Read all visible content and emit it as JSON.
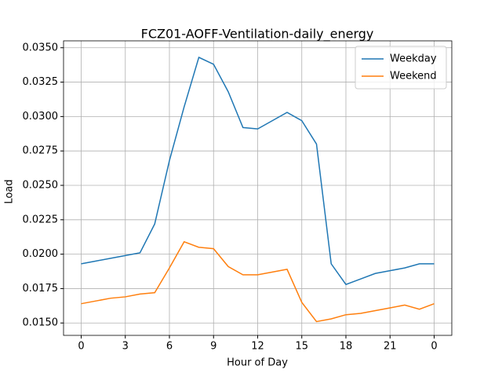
{
  "chart_data": {
    "type": "line",
    "title": "FCZ01-AOFF-Ventilation-daily_energy",
    "x_label": "Hour of Day",
    "y_label": "Load",
    "x": [
      0,
      1,
      2,
      3,
      4,
      5,
      6,
      7,
      8,
      9,
      10,
      11,
      12,
      13,
      14,
      15,
      16,
      17,
      18,
      19,
      20,
      21,
      22,
      23,
      24
    ],
    "series": [
      {
        "name": "Weekday",
        "color": "#1f77b4",
        "values": [
          0.0193,
          0.0195,
          0.0197,
          0.0199,
          0.0201,
          0.0222,
          0.0268,
          0.0307,
          0.0343,
          0.0338,
          0.0318,
          0.0292,
          0.0291,
          0.0297,
          0.0303,
          0.0297,
          0.028,
          0.0193,
          0.0178,
          0.0182,
          0.0186,
          0.0188,
          0.019,
          0.0193,
          0.0193
        ]
      },
      {
        "name": "Weekend",
        "color": "#ff7f0e",
        "values": [
          0.0164,
          0.0166,
          0.0168,
          0.0169,
          0.0171,
          0.0172,
          0.019,
          0.0209,
          0.0205,
          0.0204,
          0.0191,
          0.0185,
          0.0185,
          0.0187,
          0.0189,
          0.0165,
          0.0151,
          0.0153,
          0.0156,
          0.0157,
          0.0159,
          0.0161,
          0.0163,
          0.016,
          0.0164
        ]
      }
    ],
    "xlim": [
      -1.2,
      25.2
    ],
    "ylim": [
      0.0141,
      0.0355
    ],
    "xticks": [
      0,
      3,
      6,
      9,
      12,
      15,
      18,
      21,
      {
        "value": 24,
        "label": "0"
      }
    ],
    "yticks": [
      {
        "value": 0.015,
        "label": "0.0150"
      },
      {
        "value": 0.0175,
        "label": "0.0175"
      },
      {
        "value": 0.02,
        "label": "0.0200"
      },
      {
        "value": 0.0225,
        "label": "0.0225"
      },
      {
        "value": 0.025,
        "label": "0.0250"
      },
      {
        "value": 0.0275,
        "label": "0.0275"
      },
      {
        "value": 0.03,
        "label": "0.0300"
      },
      {
        "value": 0.0325,
        "label": "0.0325"
      },
      {
        "value": 0.035,
        "label": "0.0350"
      }
    ],
    "grid": true,
    "legend": "upper right"
  }
}
